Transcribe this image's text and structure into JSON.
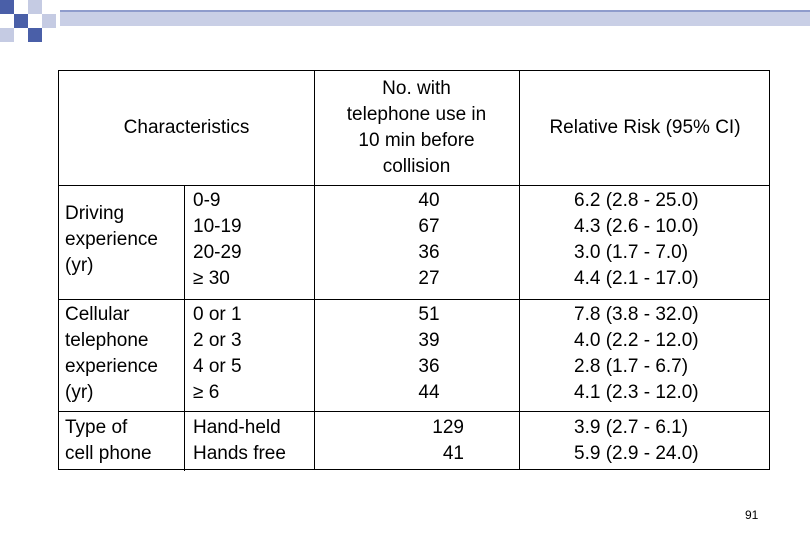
{
  "header": {
    "characteristics": "Characteristics",
    "no_with_use": [
      "No. with",
      "telephone use in",
      "10 min before",
      "collision"
    ],
    "relative_risk": "Relative Risk (95% CI)"
  },
  "groups": [
    {
      "label": [
        "Driving",
        "experience",
        "(yr)"
      ],
      "categories": [
        "0-9",
        "10-19",
        "20-29",
        "≥ 30"
      ],
      "counts": [
        "40",
        "67",
        "36",
        "27"
      ],
      "risks": [
        "6.2 (2.8 - 25.0)",
        "4.3 (2.6 - 10.0)",
        "3.0 (1.7 - 7.0)",
        "4.4 (2.1 - 17.0)"
      ]
    },
    {
      "label": [
        "Cellular",
        "telephone",
        "experience",
        "(yr)"
      ],
      "categories": [
        "0 or 1",
        "2 or 3",
        "4 or 5",
        "≥  6"
      ],
      "counts": [
        "51",
        "39",
        "36",
        "44"
      ],
      "risks": [
        "7.8 (3.8 - 32.0)",
        "4.0 (2.2 - 12.0)",
        "2.8 (1.7 - 6.7)",
        "4.1 (2.3 - 12.0)"
      ]
    },
    {
      "label": [
        "Type of",
        "cell phone"
      ],
      "categories": [
        "Hand-held",
        "Hands free"
      ],
      "counts": [
        "129",
        "41"
      ],
      "risks": [
        "3.9 (2.7 - 6.1)",
        "5.9 (2.9 - 24.0)"
      ]
    }
  ],
  "page_number": "91",
  "colors": {
    "deco_blue": "#4a5fa8",
    "deco_light": "#c5cbe3"
  }
}
